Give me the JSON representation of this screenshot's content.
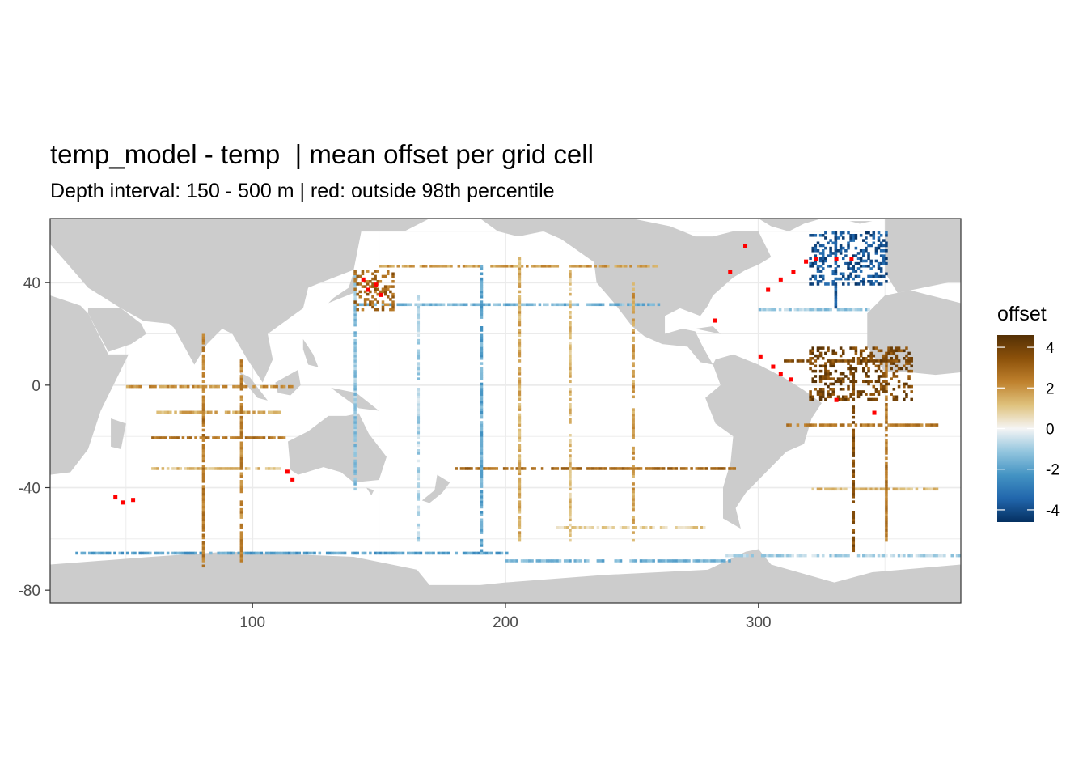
{
  "title": "temp_model - temp  | mean offset per grid cell",
  "subtitle": "Depth interval: 150 - 500 m | red: outside 98th percentile",
  "chart_data": {
    "type": "heatmap",
    "xlim": [
      20,
      380
    ],
    "ylim": [
      -85,
      65
    ],
    "x_ticks": [
      100,
      200,
      300
    ],
    "y_ticks": [
      40,
      0,
      -40,
      -80
    ],
    "x_tick_labels": [
      "100",
      "200",
      "300"
    ],
    "y_tick_labels": [
      "40",
      "0",
      "-40",
      "-80"
    ],
    "grid": true,
    "legend": {
      "title": "offset",
      "position": "right",
      "range": [
        -4.6,
        4.6
      ],
      "breaks": [
        4,
        2,
        0,
        -2,
        -4
      ],
      "labels": [
        "4",
        "2",
        "0",
        "-2",
        "-4"
      ],
      "colors": [
        "#053061",
        "#2166ac",
        "#4393c3",
        "#92c5de",
        "#f5f5f5",
        "#dfc27d",
        "#bf812d",
        "#8c510a",
        "#543005"
      ]
    },
    "land_color": "#cccccc",
    "ocean_color": "#ffffff",
    "outlier_color": "#ff0000",
    "tracks": [
      {
        "lon": [
          60,
          115
        ],
        "lat": -20,
        "value": 2.5
      },
      {
        "lon": [
          60,
          110
        ],
        "lat": -10,
        "value": 1.5
      },
      {
        "lon": [
          50,
          115
        ],
        "lat": 0,
        "value": 2.0
      },
      {
        "lon": [
          60,
          110
        ],
        "lat": -32,
        "value": 1.2
      },
      {
        "lon": [
          180,
          290
        ],
        "lat": -32,
        "value": 2.8
      },
      {
        "lon": [
          140,
          260
        ],
        "lat": 32,
        "value": -1.5
      },
      {
        "lon": [
          150,
          260
        ],
        "lat": 47,
        "value": 1.8
      },
      {
        "lon": [
          30,
          200
        ],
        "lat": -65,
        "value": -2.0
      },
      {
        "lon": [
          200,
          290
        ],
        "lat": -68,
        "value": -1.5
      },
      {
        "lon": [
          285,
          380
        ],
        "lat": -66,
        "value": -0.8
      },
      {
        "lon": [
          310,
          360
        ],
        "lat": 10,
        "value": 3.5
      },
      {
        "lon": [
          310,
          370
        ],
        "lat": -15,
        "value": 2.5
      },
      {
        "lon": [
          320,
          370
        ],
        "lat": -40,
        "value": 1.2
      },
      {
        "lon": [
          300,
          345
        ],
        "lat": 30,
        "value": -1.0
      },
      {
        "lon": [
          220,
          280
        ],
        "lat": -55,
        "value": 0.8
      }
    ],
    "meridians": [
      {
        "lat": [
          -70,
          20
        ],
        "lon": 80,
        "value": 2.5
      },
      {
        "lat": [
          -70,
          10
        ],
        "lon": 95,
        "value": 2.2
      },
      {
        "lat": [
          -40,
          45
        ],
        "lon": 140,
        "value": -1.2
      },
      {
        "lat": [
          -60,
          35
        ],
        "lon": 165,
        "value": -0.8
      },
      {
        "lat": [
          -65,
          50
        ],
        "lon": 190,
        "value": -1.8
      },
      {
        "lat": [
          -60,
          50
        ],
        "lon": 205,
        "value": 1.5
      },
      {
        "lat": [
          -60,
          45
        ],
        "lon": 225,
        "value": 1.2
      },
      {
        "lat": [
          -60,
          40
        ],
        "lon": 250,
        "value": 1.8
      },
      {
        "lat": [
          -65,
          5
        ],
        "lon": 337,
        "value": 3.5
      },
      {
        "lat": [
          -60,
          10
        ],
        "lon": 350,
        "value": 2.5
      },
      {
        "lat": [
          30,
          60
        ],
        "lon": 330,
        "value": -3.8
      }
    ],
    "patches": [
      {
        "lon": [
          320,
          360
        ],
        "lat": [
          -5,
          15
        ],
        "value": 3.8
      },
      {
        "lon": [
          320,
          350
        ],
        "lat": [
          40,
          60
        ],
        "value": -3.8
      },
      {
        "lon": [
          140,
          155
        ],
        "lat": [
          30,
          45
        ],
        "value": 2.8
      }
    ],
    "outliers": [
      [
        143,
        42
      ],
      [
        145,
        38
      ],
      [
        148,
        40
      ],
      [
        150,
        36
      ],
      [
        45,
        -43
      ],
      [
        48,
        -45
      ],
      [
        52,
        -44
      ],
      [
        113,
        -33
      ],
      [
        115,
        -36
      ],
      [
        303,
        38
      ],
      [
        308,
        42
      ],
      [
        313,
        45
      ],
      [
        318,
        49
      ],
      [
        322,
        50
      ],
      [
        330,
        50
      ],
      [
        305,
        8
      ],
      [
        308,
        5
      ],
      [
        312,
        3
      ],
      [
        294,
        55
      ],
      [
        282,
        26
      ],
      [
        330,
        -5
      ],
      [
        300,
        12
      ],
      [
        345,
        -10
      ],
      [
        288,
        45
      ],
      [
        336,
        50
      ]
    ]
  }
}
